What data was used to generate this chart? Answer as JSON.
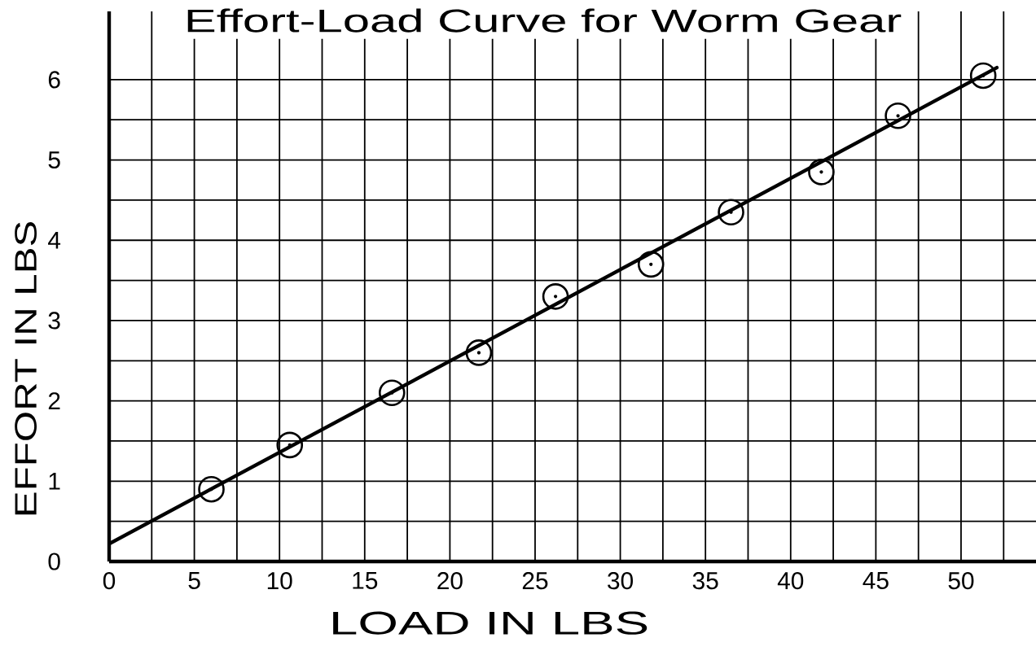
{
  "chart_data": {
    "type": "scatter",
    "title": "Effort-Load Curve for Worm Gear",
    "xlabel": "LOAD IN LBS",
    "ylabel": "EFFORT IN LBS",
    "xlim": [
      0,
      54.4
    ],
    "ylim": [
      0,
      6.85
    ],
    "xticks": [
      0,
      {
        "value": 2.5,
        "label": null
      },
      5,
      {
        "value": 7.5,
        "label": null
      },
      10,
      {
        "value": 12.5,
        "label": null
      },
      15,
      {
        "value": 17.5,
        "label": null
      },
      20,
      {
        "value": 22.5,
        "label": null
      },
      25,
      {
        "value": 27.5,
        "label": null
      },
      30,
      {
        "value": 32.5,
        "label": null
      },
      35,
      {
        "value": 37.5,
        "label": null
      },
      40,
      {
        "value": 42.5,
        "label": null
      },
      45,
      {
        "value": 47.5,
        "label": null
      },
      50,
      {
        "value": 52.5,
        "label": null
      }
    ],
    "yticks": [
      0,
      {
        "value": 0.5,
        "label": null
      },
      1,
      {
        "value": 1.5,
        "label": null
      },
      2,
      {
        "value": 2.5,
        "label": null
      },
      3,
      {
        "value": 3.5,
        "label": null
      },
      4,
      {
        "value": 4.5,
        "label": null
      },
      5,
      {
        "value": 5.5,
        "label": null
      },
      6
    ],
    "grid": true,
    "series": [
      {
        "color": "#000000",
        "marker": "circle",
        "x": [
          6,
          10.6,
          16.6,
          21.7,
          26.2,
          31.8,
          36.5,
          41.8,
          46.3,
          51.3
        ],
        "values": [
          0.9,
          1.45,
          2.1,
          2.6,
          3.3,
          3.7,
          4.35,
          4.85,
          5.55,
          6.05
        ]
      },
      {
        "type": "line",
        "color": "#000000",
        "x": [
          0,
          52.1
        ],
        "values": [
          0.22,
          6.15
        ]
      }
    ]
  }
}
